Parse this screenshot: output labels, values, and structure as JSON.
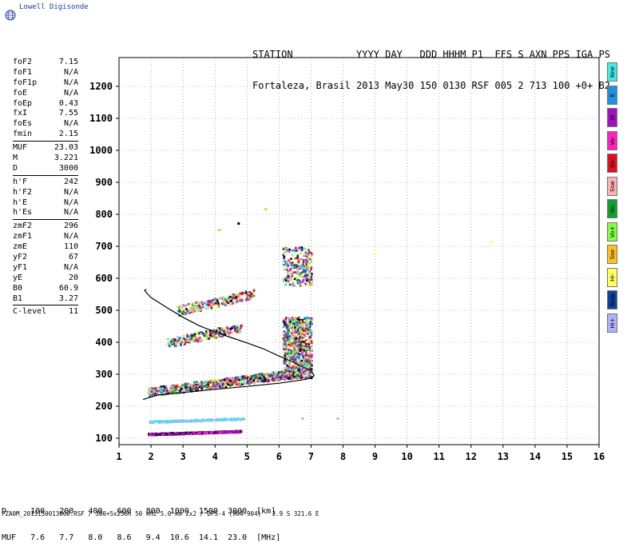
{
  "logo": {
    "text": "Lowell Digisonde",
    "icon": "globe-icon"
  },
  "header": {
    "line1": "STATION           YYYY DAY   DDD HHHM P1  FFS S AXN PPS IGA PS",
    "line2": "Fortaleza, Brasil 2013 May30 150 0130 RSF 005 2 713 100 +0+ B2"
  },
  "params": {
    "group1": [
      [
        "foF2",
        "7.15"
      ],
      [
        "foF1",
        "N/A"
      ],
      [
        "foF1p",
        "N/A"
      ],
      [
        "foE",
        "N/A"
      ],
      [
        "foEp",
        "0.43"
      ],
      [
        "fxI",
        "7.55"
      ],
      [
        "foEs",
        "N/A"
      ],
      [
        "fmin",
        "2.15"
      ]
    ],
    "group2": [
      [
        "MUF",
        "23.03"
      ],
      [
        "M",
        "3.221"
      ],
      [
        "D",
        "3000"
      ]
    ],
    "group3": [
      [
        "h'F",
        "242"
      ],
      [
        "h'F2",
        "N/A"
      ],
      [
        "h'E",
        "N/A"
      ],
      [
        "h'Es",
        "N/A"
      ]
    ],
    "group4": [
      [
        "zmF2",
        "296"
      ],
      [
        "zmF1",
        "N/A"
      ],
      [
        "zmE",
        "110"
      ],
      [
        "yF2",
        "67"
      ],
      [
        "yF1",
        "N/A"
      ],
      [
        "yE",
        "20"
      ],
      [
        "B0",
        "60.9"
      ],
      [
        "B1",
        "3.27"
      ]
    ],
    "group5": [
      [
        "C-level",
        "11"
      ]
    ]
  },
  "legend": [
    {
      "label": "Nne",
      "color": "#40e8e8"
    },
    {
      "label": "E",
      "color": "#2090e0"
    },
    {
      "label": "W",
      "color": "#a010c0"
    },
    {
      "label": "Vo-",
      "color": "#ff20c0"
    },
    {
      "label": "Xo-",
      "color": "#e01020"
    },
    {
      "label": "Ssw",
      "color": "#ffb0b0"
    },
    {
      "label": "Vo-",
      "color": "#10a030"
    },
    {
      "label": "Vo+",
      "color": "#80ff40"
    },
    {
      "label": "Sse",
      "color": "#ffc020"
    },
    {
      "label": "Hi-",
      "color": "#ffff60"
    },
    {
      "label": "Nnw",
      "color": "#1040a0"
    },
    {
      "label": "Hi+",
      "color": "#b0b0ff"
    }
  ],
  "bottom": {
    "line1": "D     100   200   400   600   800  1000  1500  3000  [km]",
    "line2": "MUF   7.6   7.7   8.0   8.6   9.4  10.6  14.1  23.0  [MHz]"
  },
  "footer": "FZA0M_2013150013000.RSF / 300+5x256h 50 kHz 5.0 km 2x2 / DPS-4 (904-904)   3.9 S 321.6 E",
  "chart_data": {
    "type": "scatter",
    "x_ticks": [
      "1",
      "2",
      "3",
      "4",
      "5",
      "6",
      "7",
      "8",
      "9",
      "10",
      "11",
      "12",
      "13",
      "14",
      "15",
      "16"
    ],
    "y_ticks": [
      "100",
      "200",
      "300",
      "400",
      "500",
      "600",
      "700",
      "800",
      "900",
      "1000",
      "1100",
      "1200"
    ],
    "xlim": [
      1,
      16
    ],
    "ylim": [
      80,
      1290
    ],
    "grid": true,
    "profile": [
      [
        7.1,
        296
      ],
      [
        7.0,
        310
      ],
      [
        6.7,
        325
      ],
      [
        6.4,
        340
      ],
      [
        6.0,
        357
      ],
      [
        5.5,
        380
      ],
      [
        5.0,
        398
      ],
      [
        4.5,
        415
      ],
      [
        4.0,
        432
      ],
      [
        3.5,
        452
      ],
      [
        3.0,
        478
      ],
      [
        2.5,
        508
      ],
      [
        2.0,
        540
      ],
      [
        1.9,
        550
      ],
      [
        1.8,
        562
      ],
      [
        1.85,
        566
      ]
    ],
    "profile_lower": [
      [
        7.1,
        296
      ],
      [
        7.0,
        288
      ],
      [
        6.7,
        282
      ],
      [
        6.0,
        272
      ],
      [
        5.0,
        262
      ],
      [
        4.0,
        253
      ],
      [
        3.0,
        243
      ],
      [
        2.2,
        235
      ],
      [
        2.0,
        229
      ],
      [
        1.75,
        221
      ]
    ],
    "traces": [
      {
        "band": "F-lower",
        "x": [
          1.9,
          6.7
        ],
        "y": [
          232,
          300
        ],
        "density": "high"
      },
      {
        "band": "F-upper",
        "x": [
          6.1,
          7.0
        ],
        "y": [
          290,
          480
        ],
        "density": "high"
      },
      {
        "band": "F-2hop",
        "x": [
          2.5,
          4.8
        ],
        "y": [
          385,
          455
        ],
        "density": "medium"
      },
      {
        "band": "F-3hop",
        "x": [
          2.8,
          5.2
        ],
        "y": [
          485,
          560
        ],
        "density": "medium"
      },
      {
        "band": "F-cusp",
        "x": [
          6.1,
          7.0
        ],
        "y": [
          580,
          700
        ],
        "density": "medium"
      },
      {
        "band": "E-low",
        "x": [
          1.9,
          4.8
        ],
        "y": [
          112,
          125
        ],
        "density": "high"
      },
      {
        "band": "Es",
        "x": [
          1.9,
          4.9
        ],
        "y": [
          150,
          165
        ],
        "density": "medium"
      }
    ]
  }
}
